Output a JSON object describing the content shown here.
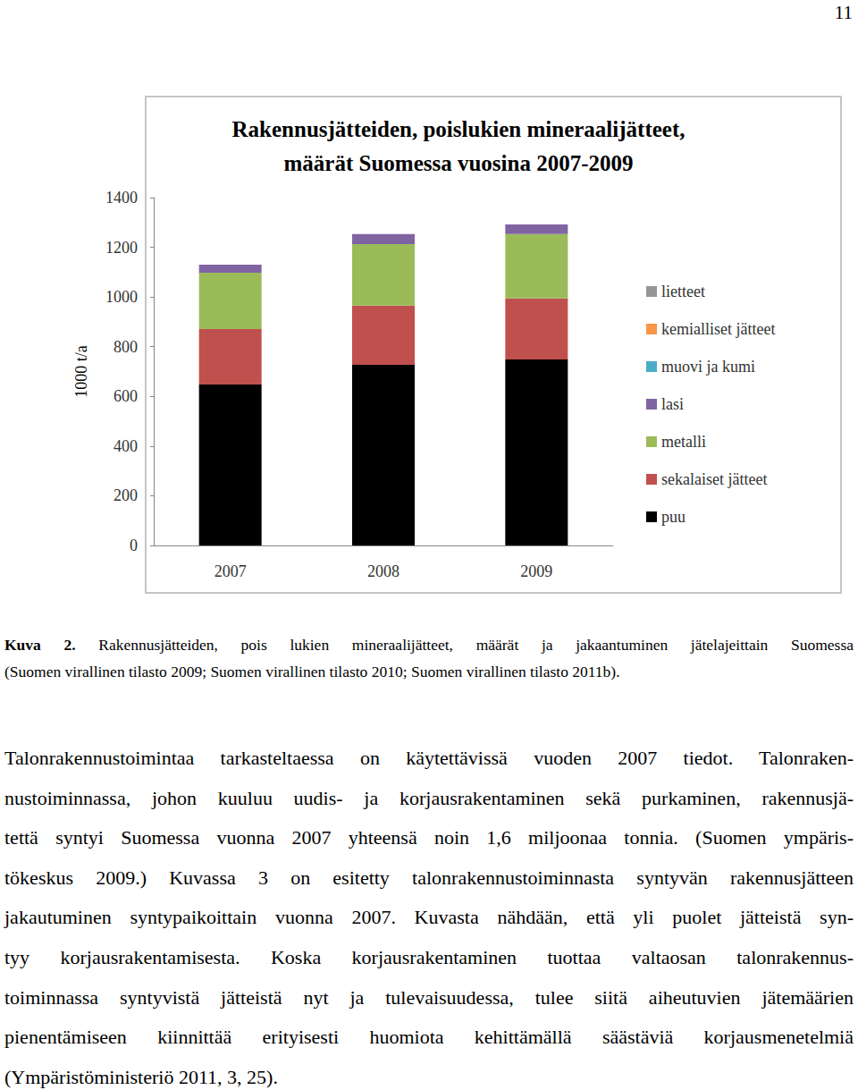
{
  "page_number": "11",
  "chart_data": {
    "type": "bar",
    "title": "Rakennusjätteiden, poislukien mineraalijätteet,\nmäärät Suomessa vuosina 2007-2009",
    "y_label": "1000 t/a",
    "categories": [
      "2007",
      "2008",
      "2009"
    ],
    "stacked": true,
    "grid": false,
    "legend": "right",
    "ylim": [
      0,
      1400
    ],
    "yticks": [
      0,
      200,
      400,
      600,
      800,
      1000,
      1200,
      1400
    ],
    "series": [
      {
        "name": "puu",
        "color": "#000000",
        "values": [
          648,
          727,
          749
        ]
      },
      {
        "name": "sekalaiset jätteet",
        "color": "#c0504d",
        "values": [
          223,
          238,
          245
        ]
      },
      {
        "name": "metalli",
        "color": "#9bbb59",
        "values": [
          227,
          248,
          259
        ]
      },
      {
        "name": "lasi",
        "color": "#8064a2",
        "values": [
          32,
          40,
          39
        ]
      },
      {
        "name": "muovi ja kumi",
        "color": "#4bacc6",
        "values": [
          0,
          0,
          0
        ]
      },
      {
        "name": "kemialliset jätteet",
        "color": "#f79646",
        "values": [
          0,
          0,
          0
        ]
      },
      {
        "name": "lietteet",
        "color": "#969696",
        "values": [
          0,
          0,
          0
        ]
      }
    ]
  },
  "caption": {
    "label": "Kuva 2.",
    "lines": [
      "Rakennusjätteiden, pois lukien mineraalijätteet, määrät ja jakaantuminen jätelajeittain Suomessa",
      "(Suomen virallinen tilasto 2009; Suomen virallinen tilasto 2010; Suomen virallinen tilasto 2011b)."
    ]
  },
  "paragraph": {
    "lines": [
      "Talonrakennustoimintaa tarkasteltaessa on käytettävissä vuoden 2007 tiedot. Talonraken-",
      "nustoiminnassa, johon kuuluu uudis- ja korjausrakentaminen sekä purkaminen, rakennusjä-",
      "tettä syntyi Suomessa vuonna 2007 yhteensä noin 1,6 miljoonaa tonnia. (Suomen ympäris-",
      "tökeskus 2009.) Kuvassa 3 on esitetty talonrakennustoiminnasta syntyvän rakennusjätteen",
      "jakautuminen syntypaikoittain vuonna 2007. Kuvasta nähdään, että yli puolet jätteistä syn-",
      "tyy korjausrakentamisesta. Koska korjausrakentaminen tuottaa valtaosan talonrakennus-",
      "toiminnassa syntyvistä jätteistä nyt ja tulevaisuudessa, tulee siitä aiheutuvien jätemäärien",
      "pienentämiseen kiinnittää erityisesti huomiota kehittämällä säästäviä korjausmenetelmiä",
      "(Ympäristöministeriö 2011, 3, 25)."
    ]
  }
}
